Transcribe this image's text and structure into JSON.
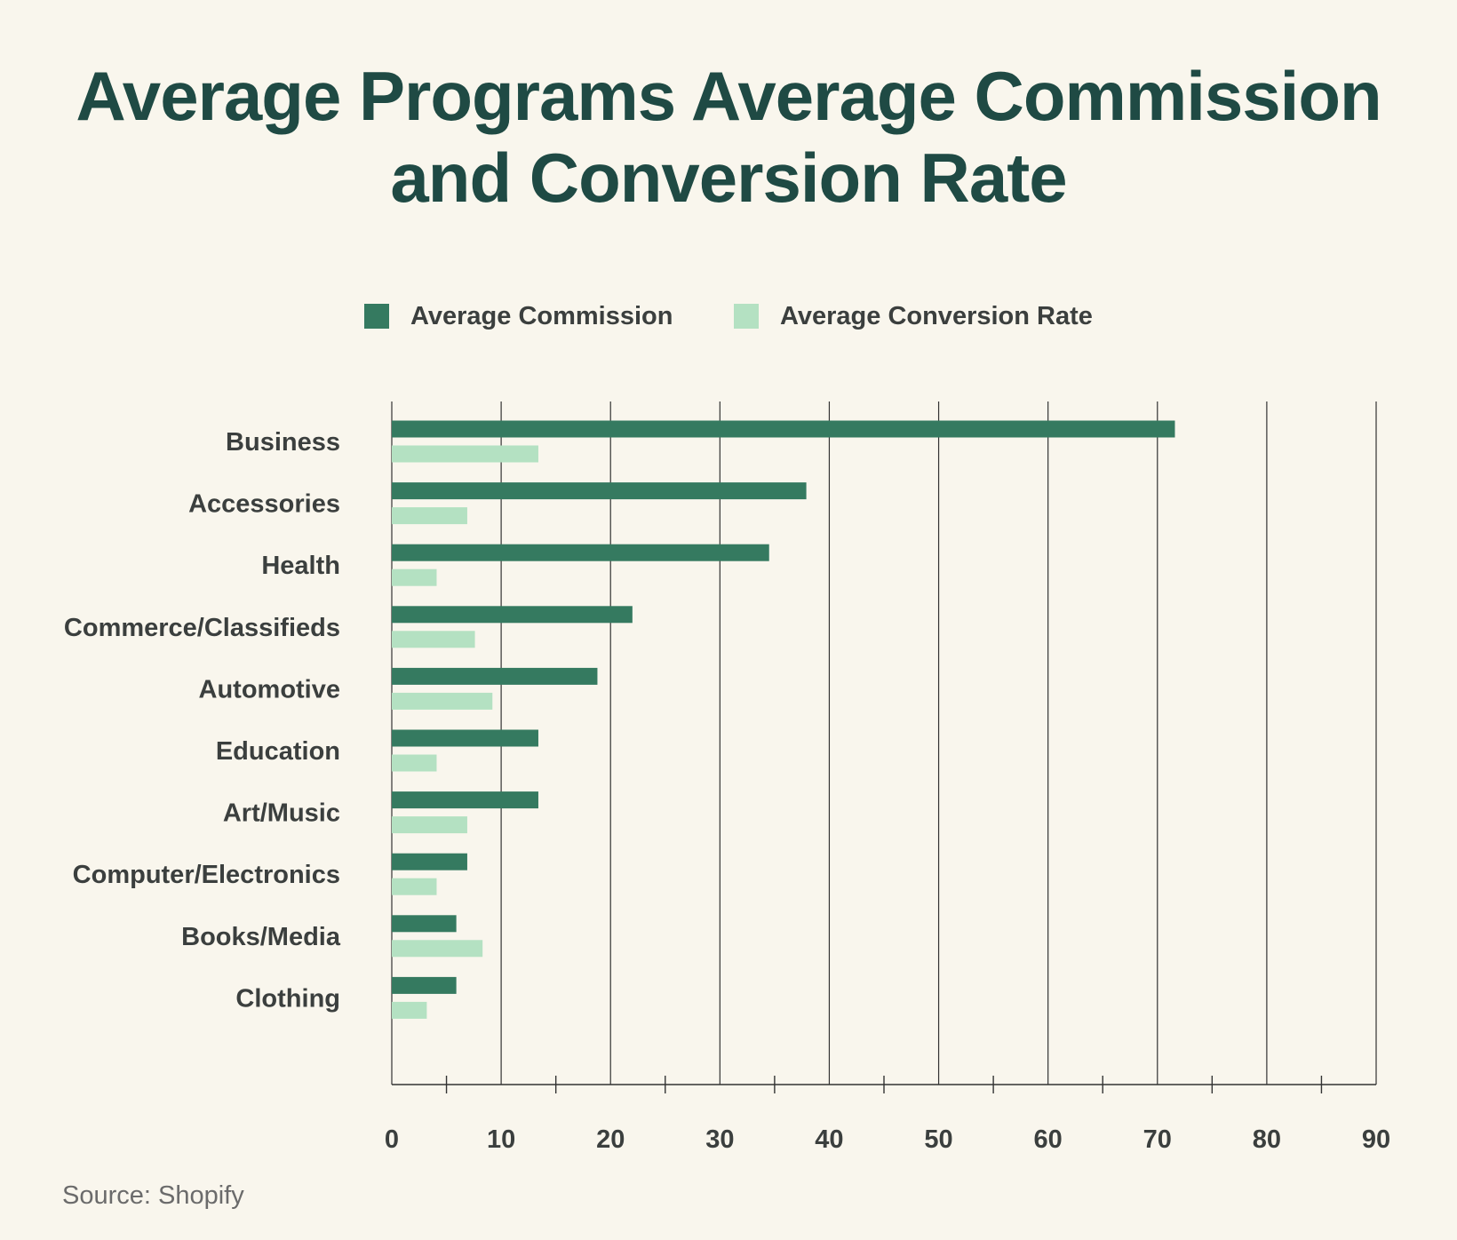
{
  "title": {
    "line1": "Average Programs Average Commission",
    "line2": "and Conversion Rate"
  },
  "legend": {
    "commission_label": "Average Commission",
    "conversion_label": "Average Conversion Rate"
  },
  "colors": {
    "commission": "#357a60",
    "conversion": "#b4e1c2",
    "title": "#1f4a44",
    "axis": "#333333",
    "text": "#3b3f3e"
  },
  "source": "Source: Shopify",
  "chart_data": {
    "type": "bar",
    "orientation": "horizontal",
    "title": "Average Programs Average Commission and Conversion Rate",
    "xlabel": "",
    "ylabel": "",
    "xlim": [
      0,
      90
    ],
    "x_ticks": [
      0,
      10,
      20,
      30,
      40,
      50,
      60,
      70,
      80,
      90
    ],
    "grid": true,
    "legend_position": "top-center",
    "categories": [
      "Business",
      "Accessories",
      "Health",
      "Commerce/Classifieds",
      "Automotive",
      "Education",
      "Art/Music",
      "Computer/Electronics",
      "Books/Media",
      "Clothing"
    ],
    "series": [
      {
        "name": "Average Commission",
        "values": [
          71.6,
          37.9,
          34.5,
          22.0,
          18.8,
          13.4,
          13.4,
          6.9,
          5.9,
          5.9
        ]
      },
      {
        "name": "Average Conversion Rate",
        "values": [
          13.4,
          6.9,
          4.1,
          7.6,
          9.2,
          4.1,
          6.9,
          4.1,
          8.3,
          3.2
        ]
      }
    ]
  }
}
